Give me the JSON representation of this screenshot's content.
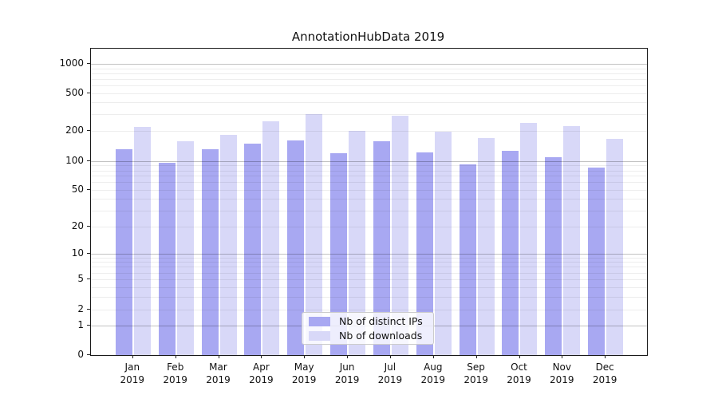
{
  "title": "AnnotationHubData 2019",
  "legend": {
    "items": [
      {
        "label": "Nb of distinct IPs",
        "color": "#a8a8f2"
      },
      {
        "label": "Nb of downloads",
        "color": "#d8d8f8"
      }
    ]
  },
  "axes": {
    "y_tick_labels": [
      "0",
      "1",
      "2",
      "5",
      "10",
      "20",
      "50",
      "100",
      "200",
      "500",
      "1000"
    ],
    "x_year_label": "2019"
  },
  "chart_data": {
    "type": "bar",
    "title": "AnnotationHubData 2019",
    "categories": [
      "Jan",
      "Feb",
      "Mar",
      "Apr",
      "May",
      "Jun",
      "Jul",
      "Aug",
      "Sep",
      "Oct",
      "Nov",
      "Dec"
    ],
    "year": "2019",
    "series": [
      {
        "name": "Nb of distinct IPs",
        "color": "#a8a8f2",
        "values": [
          131,
          97,
          131,
          150,
          160,
          121,
          158,
          123,
          92,
          127,
          110,
          85
        ]
      },
      {
        "name": "Nb of downloads",
        "color": "#d8d8f8",
        "values": [
          220,
          158,
          185,
          255,
          300,
          200,
          290,
          196,
          170,
          243,
          227,
          168
        ]
      }
    ],
    "xlabel": "",
    "ylabel": "",
    "yscale": "symlog",
    "yticks": [
      0,
      1,
      2,
      5,
      10,
      20,
      50,
      100,
      200,
      500,
      1000
    ],
    "ylim": [
      0,
      1400
    ],
    "grid": true,
    "legend_position": "bottom-center"
  }
}
